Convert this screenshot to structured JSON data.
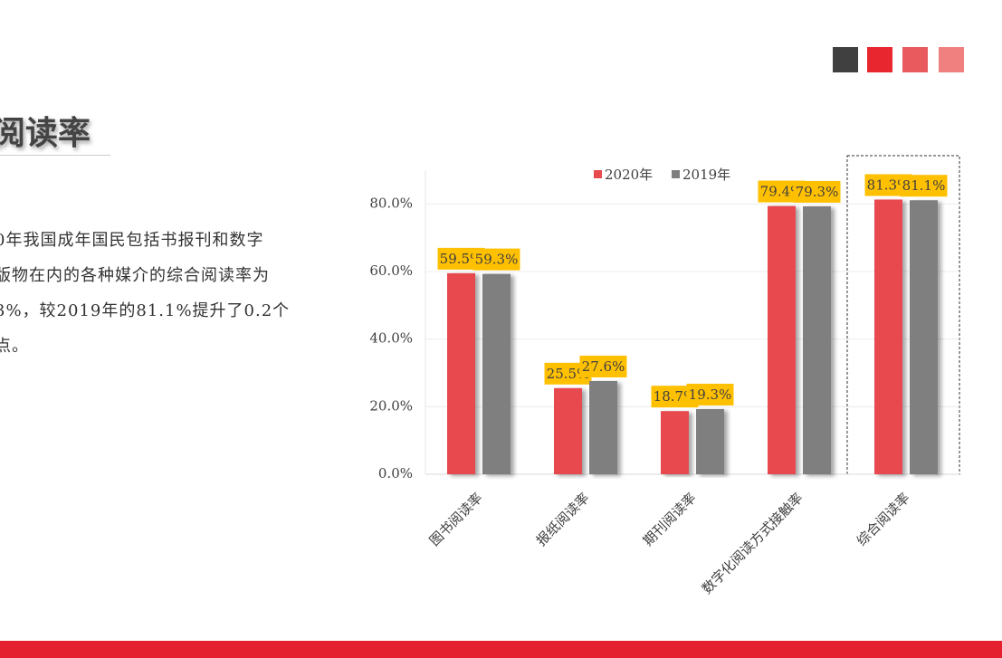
{
  "heading": "阅读率",
  "body": [
    "0年我国成年国民包括书报刊和数字",
    "版物在内的各种媒介的综合阅读率为",
    "3%，较2019年的81.1%提升了0.2个",
    "点。"
  ],
  "chart_data": {
    "type": "bar",
    "categories": [
      "图书阅读率",
      "报纸阅读率",
      "期刊阅读率",
      "数字化阅读方式接触率",
      "综合阅读率"
    ],
    "series": [
      {
        "name": "2020年",
        "color": "#e84a50",
        "values": [
          59.5,
          25.5,
          18.7,
          79.4,
          81.3
        ],
        "value_labels": [
          "59.5%",
          "25.5%",
          "18.7%",
          "79.4%",
          "81.3%"
        ]
      },
      {
        "name": "2019年",
        "color": "#7f7f7f",
        "values": [
          59.3,
          27.6,
          19.3,
          79.3,
          81.1
        ],
        "value_labels": [
          "59.3%",
          "27.6%",
          "19.3%",
          "79.3%",
          "81.1%"
        ]
      }
    ],
    "ylim": [
      0,
      90
    ],
    "yticks": [
      {
        "value": 0,
        "label": "0.0%"
      },
      {
        "value": 20,
        "label": "20.0%"
      },
      {
        "value": 40,
        "label": "40.0%"
      },
      {
        "value": 60,
        "label": "60.0%"
      },
      {
        "value": 80,
        "label": "80.0%"
      }
    ],
    "grid": true,
    "legend": "top"
  }
}
